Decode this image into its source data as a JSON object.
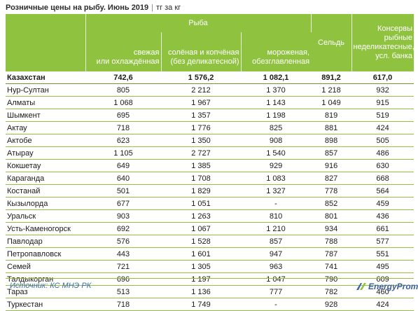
{
  "header": {
    "title": "Розничные цены на рыбу. Июнь 2019",
    "unit": "тг за кг"
  },
  "columns": {
    "group": "Рыба",
    "fresh": "свежая\nили охлаждённая",
    "salted": "солёная и копчёная\n(без деликатесной)",
    "frozen": "мороженая,\nобезглавленная",
    "herring": "Сельдь",
    "canned": "Консервы рыбные\nнеделикатесные,\nусл. банка"
  },
  "total": {
    "name": "Казахстан",
    "fresh": "742,6",
    "salted": "1 576,2",
    "frozen": "1 082,1",
    "herring": "891,2",
    "canned": "617,0"
  },
  "rows": [
    {
      "name": "Нур-Султан",
      "fresh": "805",
      "salted": "2 212",
      "frozen": "1 370",
      "herring": "1 218",
      "canned": "932"
    },
    {
      "name": "Алматы",
      "fresh": "1 068",
      "salted": "1 967",
      "frozen": "1 143",
      "herring": "1 049",
      "canned": "915"
    },
    {
      "name": "Шымкент",
      "fresh": "695",
      "salted": "1 357",
      "frozen": "1 198",
      "herring": "819",
      "canned": "519"
    },
    {
      "name": "Актау",
      "fresh": "718",
      "salted": "1 776",
      "frozen": "825",
      "herring": "881",
      "canned": "424"
    },
    {
      "name": "Актобе",
      "fresh": "623",
      "salted": "1 350",
      "frozen": "908",
      "herring": "898",
      "canned": "505"
    },
    {
      "name": "Атырау",
      "fresh": "1 105",
      "salted": "2 727",
      "frozen": "1 540",
      "herring": "857",
      "canned": "486"
    },
    {
      "name": "Кокшетау",
      "fresh": "649",
      "salted": "1 385",
      "frozen": "929",
      "herring": "916",
      "canned": "630"
    },
    {
      "name": "Караганда",
      "fresh": "640",
      "salted": "1 708",
      "frozen": "1 083",
      "herring": "827",
      "canned": "668"
    },
    {
      "name": "Костанай",
      "fresh": "501",
      "salted": "1 829",
      "frozen": "1 327",
      "herring": "778",
      "canned": "564"
    },
    {
      "name": "Кызылорда",
      "fresh": "677",
      "salted": "1 051",
      "frozen": "-",
      "herring": "852",
      "canned": "459"
    },
    {
      "name": "Уральск",
      "fresh": "903",
      "salted": "1 263",
      "frozen": "810",
      "herring": "801",
      "canned": "436"
    },
    {
      "name": "Усть-Каменогорск",
      "fresh": "692",
      "salted": "1 067",
      "frozen": "1 210",
      "herring": "934",
      "canned": "661"
    },
    {
      "name": "Павлодар",
      "fresh": "576",
      "salted": "1 528",
      "frozen": "857",
      "herring": "788",
      "canned": "577"
    },
    {
      "name": "Петропавловск",
      "fresh": "443",
      "salted": "1 601",
      "frozen": "947",
      "herring": "787",
      "canned": "551"
    },
    {
      "name": "Семей",
      "fresh": "721",
      "salted": "1 305",
      "frozen": "963",
      "herring": "741",
      "canned": "495"
    },
    {
      "name": "Талдыкорган",
      "fresh": "696",
      "salted": "1 197",
      "frozen": "1 047",
      "herring": "790",
      "canned": "609"
    },
    {
      "name": "Тараз",
      "fresh": "513",
      "salted": "1 136",
      "frozen": "777",
      "herring": "782",
      "canned": "460"
    },
    {
      "name": "Туркестан",
      "fresh": "718",
      "salted": "1 749",
      "frozen": "-",
      "herring": "928",
      "canned": "424"
    }
  ],
  "footer": {
    "source": "Источник: КС МНЭ РК",
    "brand": "EnergyProm",
    "brand_icon": "energyprom-logo-icon"
  },
  "colors": {
    "header_green": "#8ec23f",
    "source_blue": "#3c6aa0",
    "brand_blue": "#3d5f9e"
  }
}
